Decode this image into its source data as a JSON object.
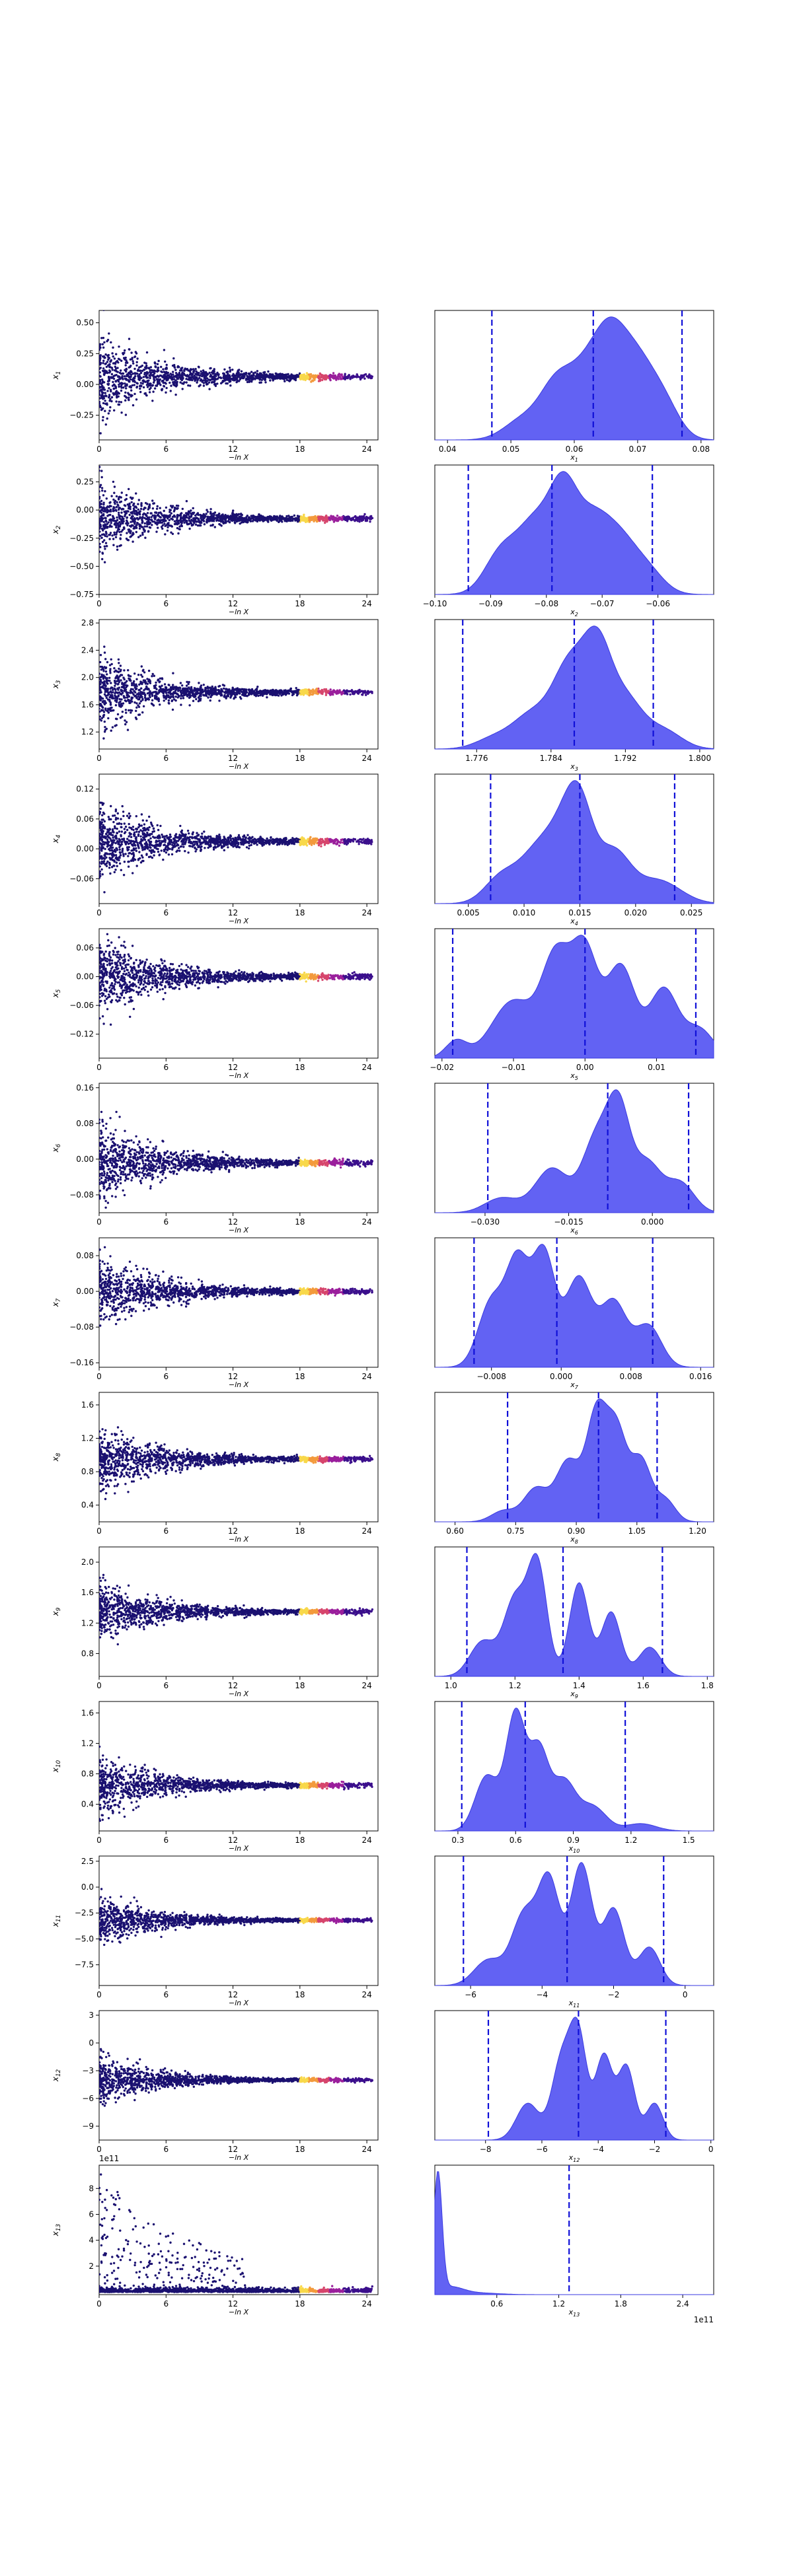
{
  "chart_data": [
    {
      "type": "scatter",
      "row": 1,
      "xlabel": "−ln X",
      "ylabel": "x_1",
      "xlim": [
        0,
        25
      ],
      "ylim": [
        -0.45,
        0.6
      ],
      "xticks": [
        0,
        6,
        12,
        18,
        24
      ],
      "yticks": [
        -0.25,
        0.0,
        0.25,
        0.5
      ],
      "ytick_labels": [
        "−0.25",
        "0.00",
        "0.25",
        "0.50"
      ],
      "center": 0.062,
      "spread": 0.3,
      "floor": 0.0
    },
    {
      "type": "area",
      "row": 1,
      "xlabel": "x_1",
      "xlim": [
        0.038,
        0.082
      ],
      "xticks": [
        0.04,
        0.05,
        0.06,
        0.07,
        0.08
      ],
      "xtick_labels": [
        "0.04",
        "0.05",
        "0.06",
        "0.07",
        "0.08"
      ],
      "quantile_lines": [
        0.047,
        0.063,
        0.077
      ],
      "peaks": [
        [
          0.052,
          0.25,
          0.003
        ],
        [
          0.057,
          0.55,
          0.0025
        ],
        [
          0.062,
          0.8,
          0.003
        ],
        [
          0.066,
          0.95,
          0.0025
        ],
        [
          0.07,
          0.75,
          0.0025
        ],
        [
          0.074,
          0.45,
          0.0025
        ]
      ]
    },
    {
      "type": "scatter",
      "row": 2,
      "xlabel": "−ln X",
      "ylabel": "x_2",
      "xlim": [
        0,
        25
      ],
      "ylim": [
        -0.75,
        0.4
      ],
      "xticks": [
        0,
        6,
        12,
        18,
        24
      ],
      "yticks": [
        -0.75,
        -0.5,
        -0.25,
        0.0,
        0.25
      ],
      "ytick_labels": [
        "−0.75",
        "−0.50",
        "−0.25",
        "0.00",
        "0.25"
      ],
      "center": -0.077,
      "spread": 0.28,
      "floor": null
    },
    {
      "type": "area",
      "row": 2,
      "xlabel": "x_2",
      "xlim": [
        -0.1,
        -0.05
      ],
      "xticks": [
        -0.1,
        -0.09,
        -0.08,
        -0.07,
        -0.06
      ],
      "xtick_labels": [
        "−0.10",
        "−0.09",
        "−0.08",
        "−0.07",
        "−0.06"
      ],
      "quantile_lines": [
        -0.094,
        -0.079,
        -0.061
      ],
      "peaks": [
        [
          -0.088,
          0.45,
          0.003
        ],
        [
          -0.082,
          0.7,
          0.003
        ],
        [
          -0.077,
          0.95,
          0.0025
        ],
        [
          -0.072,
          0.7,
          0.003
        ],
        [
          -0.067,
          0.5,
          0.003
        ],
        [
          -0.062,
          0.25,
          0.003
        ]
      ]
    },
    {
      "type": "scatter",
      "row": 3,
      "xlabel": "−ln X",
      "ylabel": "x_3",
      "xlim": [
        0,
        25
      ],
      "ylim": [
        0.95,
        2.85
      ],
      "xticks": [
        0,
        6,
        12,
        18,
        24
      ],
      "yticks": [
        1.2,
        1.6,
        2.0,
        2.4,
        2.8
      ],
      "ytick_labels": [
        "1.2",
        "1.6",
        "2.0",
        "2.4",
        "2.8"
      ],
      "center": 1.786,
      "spread": 0.45,
      "floor": null
    },
    {
      "type": "area",
      "row": 3,
      "xlabel": "x_3",
      "xlim": [
        1.7715,
        1.8015
      ],
      "xticks": [
        1.776,
        1.784,
        1.792,
        1.8
      ],
      "xtick_labels": [
        "1.776",
        "1.784",
        "1.792",
        "1.800"
      ],
      "quantile_lines": [
        1.7745,
        1.7865,
        1.795
      ],
      "peaks": [
        [
          1.778,
          0.12,
          0.002
        ],
        [
          1.782,
          0.35,
          0.002
        ],
        [
          1.786,
          0.85,
          0.0018
        ],
        [
          1.789,
          0.95,
          0.0015
        ],
        [
          1.792,
          0.5,
          0.0018
        ],
        [
          1.796,
          0.2,
          0.002
        ]
      ]
    },
    {
      "type": "scatter",
      "row": 4,
      "xlabel": "−ln X",
      "ylabel": "x_4",
      "xlim": [
        0,
        25
      ],
      "ylim": [
        -0.11,
        0.15
      ],
      "xticks": [
        0,
        6,
        12,
        18,
        24
      ],
      "yticks": [
        -0.06,
        0.0,
        0.06,
        0.12
      ],
      "ytick_labels": [
        "−0.06",
        "0.00",
        "0.06",
        "0.12"
      ],
      "center": 0.015,
      "spread": 0.07,
      "floor": null
    },
    {
      "type": "area",
      "row": 4,
      "xlabel": "x_4",
      "xlim": [
        0.002,
        0.027
      ],
      "xticks": [
        0.005,
        0.01,
        0.015,
        0.02,
        0.025
      ],
      "xtick_labels": [
        "0.005",
        "0.010",
        "0.015",
        "0.020",
        "0.025"
      ],
      "quantile_lines": [
        0.007,
        0.015,
        0.0235
      ],
      "peaks": [
        [
          0.008,
          0.35,
          0.0015
        ],
        [
          0.011,
          0.55,
          0.0015
        ],
        [
          0.0135,
          0.8,
          0.0015
        ],
        [
          0.015,
          0.95,
          0.0012
        ],
        [
          0.018,
          0.65,
          0.0015
        ],
        [
          0.022,
          0.3,
          0.002
        ]
      ]
    },
    {
      "type": "scatter",
      "row": 5,
      "xlabel": "−ln X",
      "ylabel": "x_5",
      "xlim": [
        0,
        25
      ],
      "ylim": [
        -0.17,
        0.1
      ],
      "xticks": [
        0,
        6,
        12,
        18,
        24
      ],
      "yticks": [
        -0.12,
        -0.06,
        0.0,
        0.06
      ],
      "ytick_labels": [
        "−0.12",
        "−0.06",
        "0.00",
        "0.06"
      ],
      "center": 0.0,
      "spread": 0.07,
      "floor": null
    },
    {
      "type": "area",
      "row": 5,
      "xlabel": "x_5",
      "xlim": [
        -0.021,
        0.018
      ],
      "xticks": [
        -0.02,
        -0.01,
        0.0,
        0.01
      ],
      "xtick_labels": [
        "−0.02",
        "−0.01",
        "0.00",
        "0.01"
      ],
      "quantile_lines": [
        -0.0185,
        0.0,
        0.0155
      ],
      "peaks": [
        [
          -0.018,
          0.15,
          0.0015
        ],
        [
          -0.01,
          0.5,
          0.003
        ],
        [
          -0.004,
          0.85,
          0.002
        ],
        [
          0.0,
          0.9,
          0.0018
        ],
        [
          0.005,
          0.8,
          0.002
        ],
        [
          0.011,
          0.6,
          0.002
        ],
        [
          0.016,
          0.25,
          0.002
        ]
      ]
    },
    {
      "type": "scatter",
      "row": 6,
      "xlabel": "−ln X",
      "ylabel": "x_6",
      "xlim": [
        0,
        25
      ],
      "ylim": [
        -0.12,
        0.17
      ],
      "xticks": [
        0,
        6,
        12,
        18,
        24
      ],
      "yticks": [
        -0.08,
        0.0,
        0.08,
        0.16
      ],
      "ytick_labels": [
        "−0.08",
        "0.00",
        "0.08",
        "0.16"
      ],
      "center": -0.008,
      "spread": 0.08,
      "floor": null
    },
    {
      "type": "area",
      "row": 6,
      "xlabel": "x_6",
      "xlim": [
        -0.039,
        0.011
      ],
      "xticks": [
        -0.03,
        -0.015,
        0.0
      ],
      "xtick_labels": [
        "−0.030",
        "−0.015",
        "0.000"
      ],
      "quantile_lines": [
        -0.0295,
        -0.008,
        0.0065
      ],
      "peaks": [
        [
          -0.027,
          0.15,
          0.003
        ],
        [
          -0.018,
          0.45,
          0.003
        ],
        [
          -0.01,
          0.75,
          0.0025
        ],
        [
          -0.006,
          0.95,
          0.002
        ],
        [
          -0.001,
          0.5,
          0.0025
        ],
        [
          0.005,
          0.3,
          0.0025
        ]
      ]
    },
    {
      "type": "scatter",
      "row": 7,
      "xlabel": "−ln X",
      "ylabel": "x_7",
      "xlim": [
        0,
        25
      ],
      "ylim": [
        -0.17,
        0.12
      ],
      "xticks": [
        0,
        6,
        12,
        18,
        24
      ],
      "yticks": [
        -0.16,
        -0.08,
        0.0,
        0.08
      ],
      "ytick_labels": [
        "−0.16",
        "−0.08",
        "0.00",
        "0.08"
      ],
      "center": 0.0,
      "spread": 0.07,
      "floor": null
    },
    {
      "type": "area",
      "row": 7,
      "xlabel": "x_7",
      "xlim": [
        -0.0145,
        0.0175
      ],
      "xticks": [
        -0.008,
        0.0,
        0.008,
        0.016
      ],
      "xtick_labels": [
        "−0.008",
        "0.000",
        "0.008",
        "0.016"
      ],
      "quantile_lines": [
        -0.01,
        -0.0005,
        0.0105
      ],
      "peaks": [
        [
          -0.008,
          0.55,
          0.0015
        ],
        [
          -0.005,
          0.85,
          0.0013
        ],
        [
          -0.002,
          0.95,
          0.0013
        ],
        [
          0.002,
          0.75,
          0.0015
        ],
        [
          0.006,
          0.55,
          0.0015
        ],
        [
          0.01,
          0.35,
          0.0015
        ]
      ]
    },
    {
      "type": "scatter",
      "row": 8,
      "xlabel": "−ln X",
      "ylabel": "x_8",
      "xlim": [
        0,
        25
      ],
      "ylim": [
        0.2,
        1.75
      ],
      "xticks": [
        0,
        6,
        12,
        18,
        24
      ],
      "yticks": [
        0.4,
        0.8,
        1.2,
        1.6
      ],
      "ytick_labels": [
        "0.4",
        "0.8",
        "1.2",
        "1.6"
      ],
      "center": 0.95,
      "spread": 0.35,
      "floor": null
    },
    {
      "type": "area",
      "row": 8,
      "xlabel": "x_8",
      "xlim": [
        0.55,
        1.24
      ],
      "xticks": [
        0.6,
        0.75,
        0.9,
        1.05,
        1.2
      ],
      "xtick_labels": [
        "0.60",
        "0.75",
        "0.90",
        "1.05",
        "1.20"
      ],
      "quantile_lines": [
        0.73,
        0.955,
        1.1
      ],
      "peaks": [
        [
          0.72,
          0.1,
          0.03
        ],
        [
          0.8,
          0.3,
          0.03
        ],
        [
          0.88,
          0.55,
          0.03
        ],
        [
          0.95,
          0.95,
          0.025
        ],
        [
          1.0,
          0.8,
          0.025
        ],
        [
          1.06,
          0.55,
          0.025
        ],
        [
          1.12,
          0.2,
          0.025
        ]
      ]
    },
    {
      "type": "scatter",
      "row": 9,
      "xlabel": "−ln X",
      "ylabel": "x_9",
      "xlim": [
        0,
        25
      ],
      "ylim": [
        0.5,
        2.2
      ],
      "xticks": [
        0,
        6,
        12,
        18,
        24
      ],
      "yticks": [
        0.8,
        1.2,
        1.6,
        2.0
      ],
      "ytick_labels": [
        "0.8",
        "1.2",
        "1.6",
        "2.0"
      ],
      "center": 1.35,
      "spread": 0.35,
      "floor": null
    },
    {
      "type": "area",
      "row": 9,
      "xlabel": "x_9",
      "xlim": [
        0.95,
        1.82
      ],
      "xticks": [
        1.0,
        1.2,
        1.4,
        1.6,
        1.8
      ],
      "xtick_labels": [
        "1.0",
        "1.2",
        "1.4",
        "1.6",
        "1.8"
      ],
      "quantile_lines": [
        1.05,
        1.35,
        1.66
      ],
      "peaks": [
        [
          1.1,
          0.3,
          0.04
        ],
        [
          1.2,
          0.65,
          0.035
        ],
        [
          1.27,
          0.95,
          0.03
        ],
        [
          1.4,
          0.8,
          0.03
        ],
        [
          1.5,
          0.55,
          0.03
        ],
        [
          1.62,
          0.25,
          0.035
        ]
      ]
    },
    {
      "type": "scatter",
      "row": 10,
      "xlabel": "−ln X",
      "ylabel": "x_10",
      "xlim": [
        0,
        25
      ],
      "ylim": [
        0.05,
        1.75
      ],
      "xticks": [
        0,
        6,
        12,
        18,
        24
      ],
      "yticks": [
        0.4,
        0.8,
        1.2,
        1.6
      ],
      "ytick_labels": [
        "0.4",
        "0.8",
        "1.2",
        "1.6"
      ],
      "center": 0.65,
      "spread": 0.35,
      "floor": null
    },
    {
      "type": "area",
      "row": 10,
      "xlabel": "x_10",
      "xlim": [
        0.18,
        1.63
      ],
      "xticks": [
        0.3,
        0.6,
        0.9,
        1.2,
        1.5
      ],
      "xtick_labels": [
        "0.3",
        "0.6",
        "0.9",
        "1.2",
        "1.5"
      ],
      "quantile_lines": [
        0.32,
        0.65,
        1.17
      ],
      "peaks": [
        [
          0.45,
          0.45,
          0.06
        ],
        [
          0.6,
          0.95,
          0.05
        ],
        [
          0.72,
          0.65,
          0.05
        ],
        [
          0.85,
          0.4,
          0.06
        ],
        [
          1.0,
          0.2,
          0.07
        ],
        [
          1.25,
          0.06,
          0.08
        ]
      ]
    },
    {
      "type": "scatter",
      "row": 11,
      "xlabel": "−ln X",
      "ylabel": "x_11",
      "xlim": [
        0,
        25
      ],
      "ylim": [
        -9.5,
        3.0
      ],
      "xticks": [
        0,
        6,
        12,
        18,
        24
      ],
      "yticks": [
        -7.5,
        -5.0,
        -2.5,
        0.0,
        2.5
      ],
      "ytick_labels": [
        "−7.5",
        "−5.0",
        "−2.5",
        "0.0",
        "2.5"
      ],
      "center": -3.2,
      "spread": 2.0,
      "floor": null
    },
    {
      "type": "area",
      "row": 11,
      "xlabel": "x_11",
      "xlim": [
        -7.0,
        0.8
      ],
      "xticks": [
        -6,
        -4,
        -2,
        0
      ],
      "xtick_labels": [
        "−6",
        "−4",
        "−2",
        "0"
      ],
      "quantile_lines": [
        -6.2,
        -3.3,
        -0.6
      ],
      "peaks": [
        [
          -5.5,
          0.2,
          0.4
        ],
        [
          -4.5,
          0.55,
          0.35
        ],
        [
          -3.8,
          0.8,
          0.3
        ],
        [
          -2.9,
          0.95,
          0.3
        ],
        [
          -2.0,
          0.6,
          0.3
        ],
        [
          -1.0,
          0.3,
          0.3
        ]
      ]
    },
    {
      "type": "scatter",
      "row": 12,
      "xlabel": "−ln X",
      "ylabel": "x_12",
      "xlim": [
        0,
        25
      ],
      "ylim": [
        -10.5,
        3.5
      ],
      "xticks": [
        0,
        6,
        12,
        18,
        24
      ],
      "yticks": [
        -9,
        -6,
        -3,
        0,
        3
      ],
      "ytick_labels": [
        "−9",
        "−6",
        "−3",
        "0",
        "3"
      ],
      "center": -4.0,
      "spread": 2.2,
      "floor": null
    },
    {
      "type": "area",
      "row": 12,
      "xlabel": "x_12",
      "xlim": [
        -9.8,
        0.1
      ],
      "xticks": [
        -8,
        -6,
        -4,
        -2,
        0
      ],
      "xtick_labels": [
        "−8",
        "−6",
        "−4",
        "−2",
        "0"
      ],
      "quantile_lines": [
        -7.9,
        -4.7,
        -1.6
      ],
      "peaks": [
        [
          -6.5,
          0.35,
          0.4
        ],
        [
          -5.3,
          0.75,
          0.35
        ],
        [
          -4.7,
          0.95,
          0.3
        ],
        [
          -3.8,
          0.8,
          0.3
        ],
        [
          -3.0,
          0.7,
          0.3
        ],
        [
          -2.0,
          0.35,
          0.3
        ]
      ]
    },
    {
      "type": "scatter",
      "row": 13,
      "xlabel": "−ln X",
      "ylabel": "x_13",
      "xlim": [
        0,
        25
      ],
      "ylim": [
        -0.2,
        9.8
      ],
      "xticks": [
        0,
        6,
        12,
        18,
        24
      ],
      "yticks": [
        2,
        4,
        6,
        8
      ],
      "ytick_labels": [
        "2",
        "4",
        "6",
        "8"
      ],
      "offset_label": "1e11",
      "center": 0.0,
      "spread": 0.0,
      "floor": 0.0,
      "skewed": true
    },
    {
      "type": "area",
      "row": 13,
      "xlabel": "x_13",
      "xlim": [
        0.0,
        2.7
      ],
      "xticks": [
        0.6,
        1.2,
        1.8,
        2.4
      ],
      "xtick_labels": [
        "0.6",
        "1.2",
        "1.8",
        "2.4"
      ],
      "offset_label": "1e11",
      "quantile_lines": [
        1.3
      ],
      "peaks": [
        [
          0.03,
          1.0,
          0.04
        ],
        [
          0.15,
          0.06,
          0.12
        ],
        [
          0.4,
          0.015,
          0.2
        ]
      ]
    }
  ]
}
